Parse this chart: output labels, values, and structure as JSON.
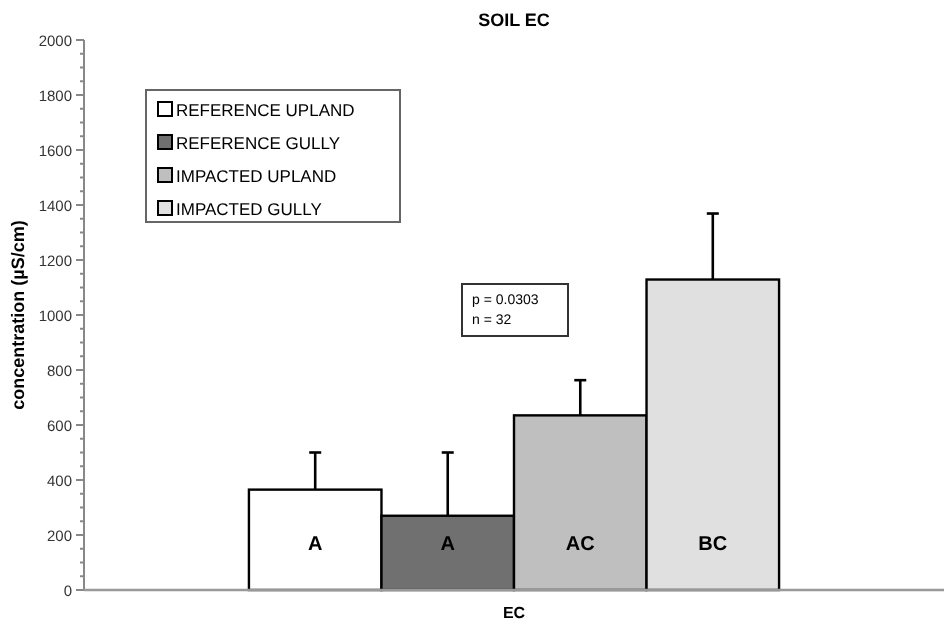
{
  "chart_data": {
    "type": "bar",
    "title": "SOIL EC",
    "ylabel": "concentration (µS/cm)",
    "categories": [
      "EC"
    ],
    "series": [
      {
        "name": "REFERENCE UPLAND",
        "color": "#ffffff",
        "values": [
          365
        ],
        "errors": [
          135
        ],
        "value_labels": [
          "A"
        ]
      },
      {
        "name": "REFERENCE GULLY",
        "color": "#707070",
        "values": [
          270
        ],
        "errors": [
          230
        ],
        "value_labels": [
          "A"
        ]
      },
      {
        "name": "IMPACTED UPLAND",
        "color": "#bfbfbf",
        "values": [
          635
        ],
        "errors": [
          128
        ],
        "value_labels": [
          "AC"
        ]
      },
      {
        "name": "IMPACTED GULLY",
        "color": "#e0e0e0",
        "values": [
          1129
        ],
        "errors": [
          240
        ],
        "value_labels": [
          "BC"
        ]
      }
    ],
    "ylim": [
      0,
      2000
    ],
    "yticks": [
      0,
      {
        "value": 50,
        "label": null
      },
      {
        "value": 100,
        "label": null
      },
      {
        "value": 150,
        "label": null
      },
      200,
      {
        "value": 250,
        "label": null
      },
      {
        "value": 300,
        "label": null
      },
      {
        "value": 350,
        "label": null
      },
      400,
      {
        "value": 450,
        "label": null
      },
      {
        "value": 500,
        "label": null
      },
      {
        "value": 550,
        "label": null
      },
      600,
      {
        "value": 650,
        "label": null
      },
      {
        "value": 700,
        "label": null
      },
      {
        "value": 750,
        "label": null
      },
      800,
      {
        "value": 850,
        "label": null
      },
      {
        "value": 900,
        "label": null
      },
      {
        "value": 950,
        "label": null
      },
      1000,
      {
        "value": 1050,
        "label": null
      },
      {
        "value": 1100,
        "label": null
      },
      {
        "value": 1150,
        "label": null
      },
      1200,
      {
        "value": 1250,
        "label": null
      },
      {
        "value": 1300,
        "label": null
      },
      {
        "value": 1350,
        "label": null
      },
      1400,
      {
        "value": 1450,
        "label": null
      },
      {
        "value": 1500,
        "label": null
      },
      {
        "value": 1550,
        "label": null
      },
      1600,
      {
        "value": 1650,
        "label": null
      },
      {
        "value": 1700,
        "label": null
      },
      {
        "value": 1750,
        "label": null
      },
      1800,
      {
        "value": 1850,
        "label": null
      },
      {
        "value": 1900,
        "label": null
      },
      {
        "value": 1950,
        "label": null
      },
      2000
    ],
    "annotations": [
      "p = 0.0303",
      "n = 32"
    ],
    "legend": "top left",
    "grid": false
  }
}
